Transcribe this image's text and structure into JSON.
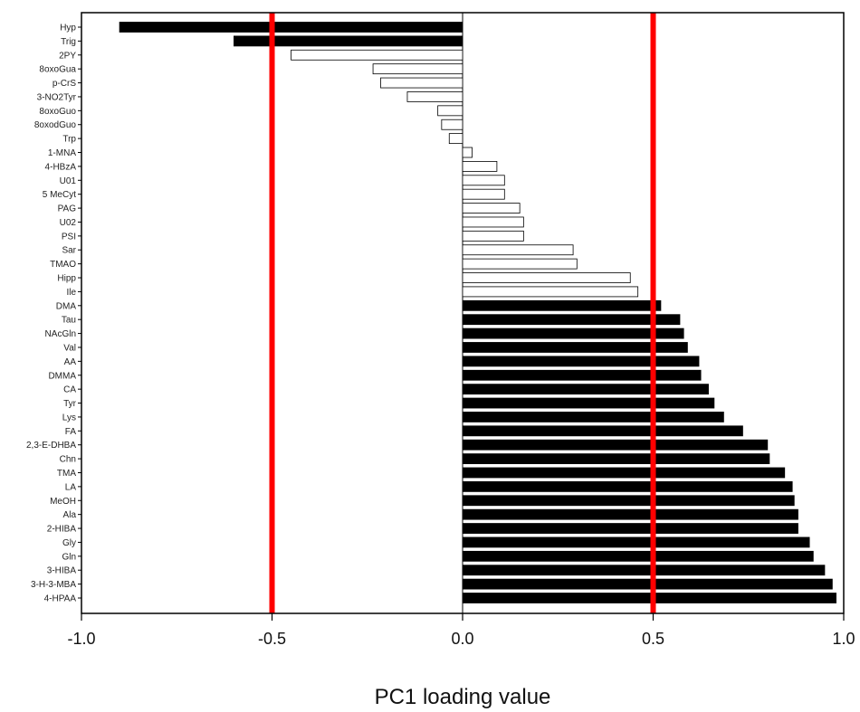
{
  "chart_data": {
    "type": "bar",
    "orientation": "horizontal",
    "title": "",
    "xlabel": "PC1 loading value",
    "ylabel": "",
    "xlim": [
      -1.0,
      1.0
    ],
    "xticks": [
      "-1.0",
      "-0.5",
      "0.0",
      "0.5",
      "1.0"
    ],
    "xtick_values": [
      -1.0,
      -0.5,
      0.0,
      0.5,
      1.0
    ],
    "grid": false,
    "categories": [
      "Hyp",
      "Trig",
      "2PY",
      "8oxoGua",
      "p-CrS",
      "3-NO2Tyr",
      "8oxoGuo",
      "8oxodGuo",
      "Trp",
      "1-MNA",
      "4-HBzA",
      "U01",
      "5 MeCyt",
      "PAG",
      "U02",
      "PSI",
      "Sar",
      "TMAO",
      "Hipp",
      "Ile",
      "DMA",
      "Tau",
      "NAcGln",
      "Val",
      "AA",
      "DMMA",
      "CA",
      "Tyr",
      "Lys",
      "FA",
      "2,3-E-DHBA",
      "Chn",
      "TMA",
      "LA",
      "MeOH",
      "Ala",
      "2-HIBA",
      "Gly",
      "Gln",
      "3-HIBA",
      "3-H-3-MBA",
      "4-HPAA"
    ],
    "values": [
      -0.9,
      -0.6,
      -0.45,
      -0.235,
      -0.215,
      -0.145,
      -0.065,
      -0.055,
      -0.035,
      0.025,
      0.09,
      0.11,
      0.11,
      0.15,
      0.16,
      0.16,
      0.29,
      0.3,
      0.44,
      0.46,
      0.52,
      0.57,
      0.58,
      0.59,
      0.62,
      0.625,
      0.645,
      0.66,
      0.685,
      0.735,
      0.8,
      0.805,
      0.845,
      0.865,
      0.87,
      0.88,
      0.88,
      0.91,
      0.92,
      0.95,
      0.97,
      0.98
    ],
    "fill": [
      "black",
      "black",
      "white",
      "white",
      "white",
      "white",
      "white",
      "white",
      "white",
      "white",
      "white",
      "white",
      "white",
      "white",
      "white",
      "white",
      "white",
      "white",
      "white",
      "white",
      "black",
      "black",
      "black",
      "black",
      "black",
      "black",
      "black",
      "black",
      "black",
      "black",
      "black",
      "black",
      "black",
      "black",
      "black",
      "black",
      "black",
      "black",
      "black",
      "black",
      "black",
      "black"
    ],
    "threshold_lines": [
      -0.5,
      0.5
    ],
    "colors": {
      "threshold": "#ff0000",
      "bar_dark": "#000000",
      "bar_light": "#ffffff",
      "bar_stroke": "#000000"
    }
  }
}
